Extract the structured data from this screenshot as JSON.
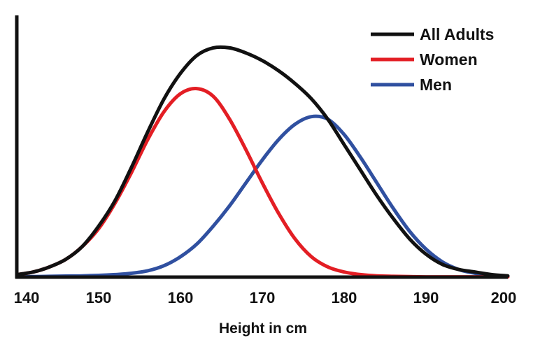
{
  "chart_data": {
    "type": "line",
    "title": "",
    "xlabel": "Height in cm",
    "ylabel": "",
    "xlim": [
      140,
      200
    ],
    "ylim": [
      0,
      1.0
    ],
    "x_ticks": [
      "140",
      "150",
      "160",
      "170",
      "180",
      "190",
      "200"
    ],
    "grid": false,
    "legend_position": "top-right",
    "series": [
      {
        "name": "All Adults",
        "color": "#111111",
        "x": [
          140,
          142,
          144,
          146,
          148,
          150,
          152,
          154,
          156,
          158,
          160,
          162,
          164,
          166,
          168,
          170,
          172,
          174,
          176,
          178,
          180,
          182,
          184,
          186,
          188,
          190,
          192,
          194,
          196,
          198,
          200
        ],
        "y": [
          0.01,
          0.02,
          0.04,
          0.07,
          0.12,
          0.2,
          0.3,
          0.43,
          0.57,
          0.7,
          0.8,
          0.87,
          0.9,
          0.9,
          0.88,
          0.85,
          0.81,
          0.76,
          0.7,
          0.62,
          0.52,
          0.42,
          0.32,
          0.23,
          0.15,
          0.09,
          0.05,
          0.03,
          0.02,
          0.01,
          0.005
        ]
      },
      {
        "name": "Women",
        "color": "#e31e24",
        "x": [
          140,
          142,
          144,
          146,
          148,
          150,
          152,
          154,
          156,
          158,
          160,
          162,
          164,
          166,
          168,
          170,
          172,
          174,
          176,
          178,
          180,
          182,
          184,
          186,
          188,
          190,
          192,
          194,
          196,
          198,
          200
        ],
        "y": [
          0.01,
          0.02,
          0.04,
          0.07,
          0.12,
          0.19,
          0.29,
          0.41,
          0.54,
          0.65,
          0.72,
          0.74,
          0.71,
          0.62,
          0.5,
          0.37,
          0.25,
          0.15,
          0.08,
          0.04,
          0.02,
          0.01,
          0.005,
          0.003,
          0.002,
          0.001,
          0.001,
          0.001,
          0.001,
          0.001,
          0.001
        ]
      },
      {
        "name": "Men",
        "color": "#3050a0",
        "x": [
          140,
          142,
          144,
          146,
          148,
          150,
          152,
          154,
          156,
          158,
          160,
          162,
          164,
          166,
          168,
          170,
          172,
          174,
          176,
          178,
          180,
          182,
          184,
          186,
          188,
          190,
          192,
          194,
          196,
          198,
          200
        ],
        "y": [
          0.001,
          0.002,
          0.003,
          0.004,
          0.005,
          0.007,
          0.01,
          0.015,
          0.025,
          0.045,
          0.08,
          0.13,
          0.2,
          0.28,
          0.37,
          0.46,
          0.54,
          0.6,
          0.63,
          0.62,
          0.56,
          0.47,
          0.37,
          0.27,
          0.18,
          0.11,
          0.06,
          0.03,
          0.015,
          0.007,
          0.003
        ]
      }
    ]
  }
}
